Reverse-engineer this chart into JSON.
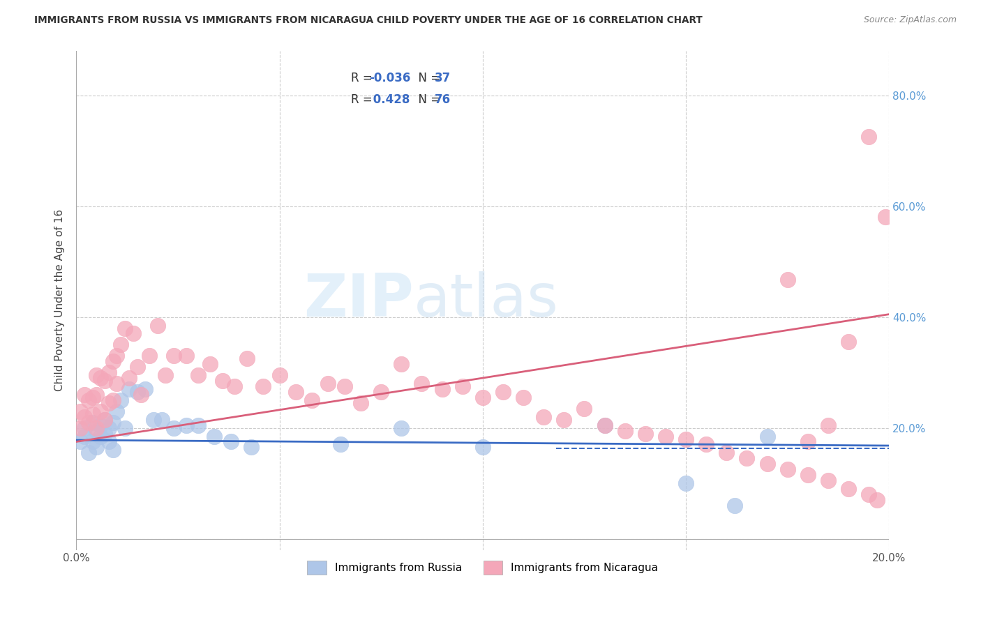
{
  "title": "IMMIGRANTS FROM RUSSIA VS IMMIGRANTS FROM NICARAGUA CHILD POVERTY UNDER THE AGE OF 16 CORRELATION CHART",
  "source": "Source: ZipAtlas.com",
  "ylabel": "Child Poverty Under the Age of 16",
  "xlim": [
    0.0,
    0.2
  ],
  "ylim": [
    -0.02,
    0.88
  ],
  "x_ticks": [
    0.0,
    0.05,
    0.1,
    0.15,
    0.2
  ],
  "x_tick_labels": [
    "0.0%",
    "",
    "",
    "",
    "20.0%"
  ],
  "y_ticks": [
    0.0,
    0.2,
    0.4,
    0.6,
    0.8
  ],
  "y_tick_labels_right": [
    "",
    "20.0%",
    "40.0%",
    "60.0%",
    "80.0%"
  ],
  "legend_russia": "Immigrants from Russia",
  "legend_nicaragua": "Immigrants from Nicaragua",
  "R_russia": -0.036,
  "N_russia": 37,
  "R_nicaragua": 0.428,
  "N_nicaragua": 76,
  "color_russia": "#aec6e8",
  "color_nicaragua": "#f4a7b9",
  "line_color_russia": "#3a6bc4",
  "line_color_nicaragua": "#d95f7a",
  "background_color": "#ffffff",
  "watermark_zip": "ZIP",
  "watermark_atlas": "atlas",
  "russia_trend": [
    0.178,
    0.168
  ],
  "nicaragua_trend": [
    0.175,
    0.405
  ],
  "dashed_line_x": [
    0.118,
    0.2
  ],
  "dashed_line_y": [
    0.163,
    0.163
  ],
  "russia_pts_x": [
    0.001,
    0.002,
    0.002,
    0.003,
    0.004,
    0.004,
    0.005,
    0.005,
    0.006,
    0.006,
    0.007,
    0.007,
    0.008,
    0.008,
    0.009,
    0.009,
    0.01,
    0.011,
    0.012,
    0.013,
    0.015,
    0.017,
    0.019,
    0.021,
    0.024,
    0.027,
    0.03,
    0.034,
    0.038,
    0.043,
    0.065,
    0.08,
    0.1,
    0.13,
    0.15,
    0.162,
    0.17
  ],
  "russia_pts_y": [
    0.175,
    0.185,
    0.2,
    0.155,
    0.175,
    0.21,
    0.195,
    0.165,
    0.205,
    0.185,
    0.215,
    0.19,
    0.2,
    0.175,
    0.16,
    0.21,
    0.23,
    0.25,
    0.2,
    0.27,
    0.265,
    0.27,
    0.215,
    0.215,
    0.2,
    0.205,
    0.205,
    0.185,
    0.175,
    0.165,
    0.17,
    0.2,
    0.165,
    0.205,
    0.1,
    0.06,
    0.185
  ],
  "nic_pts_x": [
    0.001,
    0.001,
    0.002,
    0.002,
    0.003,
    0.003,
    0.004,
    0.004,
    0.005,
    0.005,
    0.005,
    0.006,
    0.006,
    0.007,
    0.007,
    0.008,
    0.008,
    0.009,
    0.009,
    0.01,
    0.01,
    0.011,
    0.012,
    0.013,
    0.014,
    0.015,
    0.016,
    0.018,
    0.02,
    0.022,
    0.024,
    0.027,
    0.03,
    0.033,
    0.036,
    0.039,
    0.042,
    0.046,
    0.05,
    0.054,
    0.058,
    0.062,
    0.066,
    0.07,
    0.075,
    0.08,
    0.085,
    0.09,
    0.095,
    0.1,
    0.105,
    0.11,
    0.115,
    0.12,
    0.125,
    0.13,
    0.135,
    0.14,
    0.145,
    0.15,
    0.155,
    0.16,
    0.165,
    0.17,
    0.175,
    0.18,
    0.185,
    0.19,
    0.195,
    0.197,
    0.199,
    0.195,
    0.19,
    0.185,
    0.18,
    0.175
  ],
  "nic_pts_y": [
    0.2,
    0.23,
    0.26,
    0.22,
    0.25,
    0.21,
    0.255,
    0.225,
    0.295,
    0.26,
    0.2,
    0.29,
    0.23,
    0.285,
    0.215,
    0.3,
    0.245,
    0.32,
    0.25,
    0.33,
    0.28,
    0.35,
    0.38,
    0.29,
    0.37,
    0.31,
    0.26,
    0.33,
    0.385,
    0.295,
    0.33,
    0.33,
    0.295,
    0.315,
    0.285,
    0.275,
    0.325,
    0.275,
    0.295,
    0.265,
    0.25,
    0.28,
    0.275,
    0.245,
    0.265,
    0.315,
    0.28,
    0.27,
    0.275,
    0.255,
    0.265,
    0.255,
    0.22,
    0.215,
    0.235,
    0.205,
    0.195,
    0.19,
    0.185,
    0.18,
    0.17,
    0.155,
    0.145,
    0.135,
    0.125,
    0.115,
    0.105,
    0.09,
    0.08,
    0.07,
    0.58,
    0.725,
    0.355,
    0.205,
    0.175,
    0.468
  ]
}
